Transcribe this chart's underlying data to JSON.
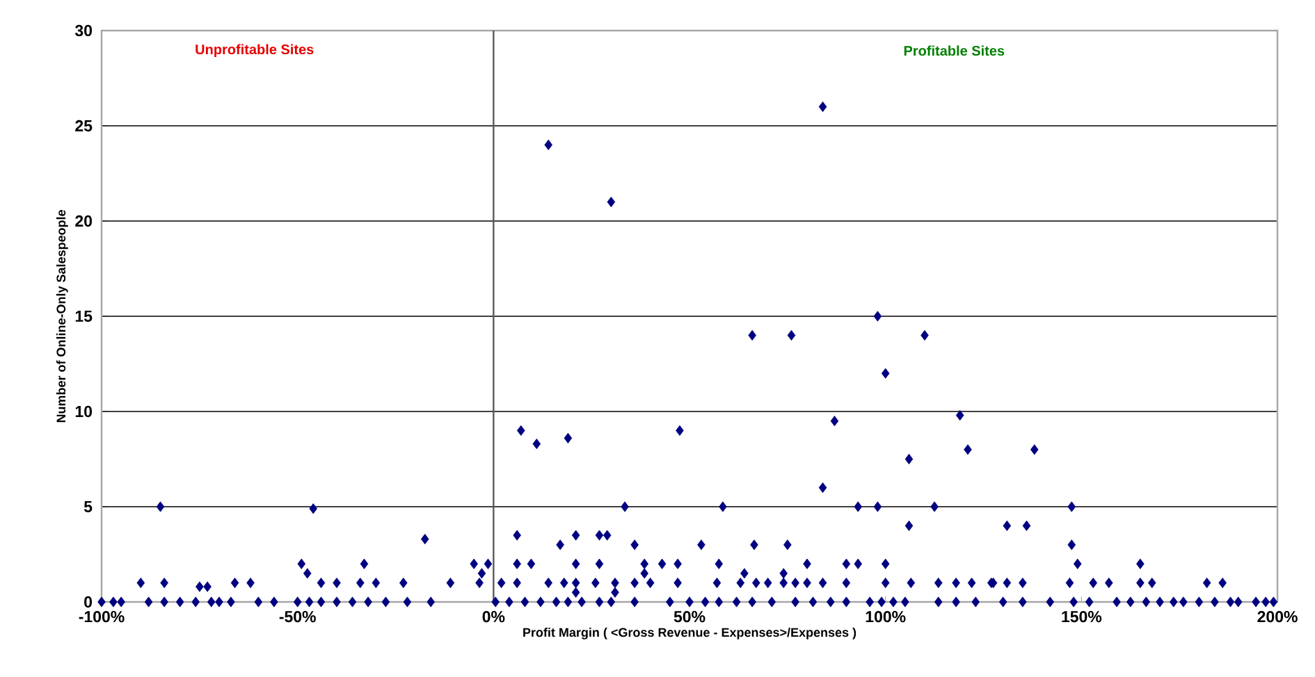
{
  "chart_data": {
    "type": "scatter",
    "xlabel": "Profit Margin ( <Gross Revenue - Expenses>/Expenses )",
    "ylabel": "Number of Online-Only Salespeople",
    "annotations": [
      "Unprofitable Sites",
      "Profitable Sites"
    ],
    "xlim": [
      -100,
      200
    ],
    "xticks": [
      {
        "value": -100,
        "label": "-100%"
      },
      {
        "value": -50,
        "label": "-50%"
      },
      {
        "value": 0,
        "label": "0%"
      },
      {
        "value": 50,
        "label": "50%"
      },
      {
        "value": 100,
        "label": "100%"
      },
      {
        "value": 150,
        "label": "150%"
      },
      {
        "value": 200,
        "label": "200%"
      }
    ],
    "ylim": [
      0,
      30
    ],
    "yticks": [
      0,
      5,
      10,
      15,
      20,
      25,
      30
    ],
    "grid": "y",
    "marker": "diamond",
    "ref_lines": [
      {
        "axis": "x",
        "value": 0
      }
    ],
    "series": [
      {
        "color": "#000080",
        "x": [
          84,
          14,
          30,
          66,
          76,
          98,
          100,
          110,
          7,
          11,
          19,
          47.5,
          87,
          106,
          119,
          121,
          138,
          -85,
          -46,
          33.5,
          58.5,
          93,
          98,
          112.5,
          147.5,
          84,
          106,
          131,
          136,
          -17.5,
          6,
          17,
          21,
          27,
          29,
          36,
          53,
          66.5,
          75,
          147.5,
          -5,
          -1.4,
          6,
          9.6,
          21,
          27,
          38.5,
          43,
          47,
          -49,
          -33,
          57.5,
          80,
          90,
          93,
          100,
          149,
          165,
          -3,
          38.5,
          -47.5,
          64,
          74,
          -90,
          -84,
          -75,
          -73,
          -66,
          -62,
          -44,
          -40,
          -34,
          -30,
          -23,
          -11,
          -3.6,
          2,
          6,
          14,
          18,
          21,
          26,
          31,
          36,
          40,
          47,
          57,
          63,
          67,
          70,
          74,
          77,
          80,
          84,
          90,
          100,
          106.5,
          113.5,
          118,
          122,
          127.5,
          127,
          131,
          135,
          147,
          153,
          157,
          165,
          168,
          182,
          186,
          21,
          31,
          -100,
          -97,
          -95,
          -88,
          -84,
          -80,
          -76,
          -72,
          -70,
          -67,
          -60,
          -56,
          -50,
          -47,
          -44,
          -40,
          -36,
          -32,
          -27.5,
          -22,
          -16,
          0.5,
          4,
          8,
          12,
          16,
          19,
          22.5,
          27,
          30,
          36,
          45,
          50,
          54,
          57.5,
          62,
          66,
          71,
          77,
          81.5,
          86,
          90,
          96,
          99,
          102,
          105,
          113.5,
          118,
          123,
          130,
          135,
          142,
          148,
          152,
          159,
          162.5,
          166.5,
          170,
          173.5,
          176,
          180,
          184,
          188,
          190,
          194.5,
          197,
          199
        ],
        "values": [
          26,
          24,
          21,
          14,
          14,
          15,
          12,
          14,
          9,
          8.3,
          8.6,
          9,
          9.5,
          7.5,
          9.8,
          8,
          8,
          5,
          4.9,
          5,
          5,
          5,
          5,
          5,
          5,
          6,
          4,
          4,
          4,
          3.3,
          3.5,
          3,
          3.5,
          3.5,
          3.5,
          3,
          3,
          3,
          3,
          3,
          2,
          2,
          2,
          2,
          2,
          2,
          2,
          2,
          2,
          2,
          2,
          2,
          2,
          2,
          2,
          2,
          2,
          2,
          1.5,
          1.5,
          1.5,
          1.5,
          1.5,
          1,
          1,
          0.8,
          0.8,
          1,
          1,
          1,
          1,
          1,
          1,
          1,
          1,
          1,
          1,
          1,
          1,
          1,
          1,
          1,
          1,
          1,
          1,
          1,
          1,
          1,
          1,
          1,
          1,
          1,
          1,
          1,
          1,
          1,
          1,
          1,
          1,
          1,
          1,
          1,
          1,
          1,
          1,
          1,
          1,
          1,
          1,
          1,
          1,
          0.5,
          0.5,
          0,
          0,
          0,
          0,
          0,
          0,
          0,
          0,
          0,
          0,
          0,
          0,
          0,
          0,
          0,
          0,
          0,
          0,
          0,
          0,
          0,
          0,
          0,
          0,
          0,
          0,
          0,
          0,
          0,
          0,
          0,
          0,
          0,
          0,
          0,
          0,
          0,
          0,
          0,
          0,
          0,
          0,
          0,
          0,
          0,
          0,
          0,
          0,
          0,
          0,
          0,
          0,
          0,
          0,
          0,
          0,
          0,
          0,
          0,
          0,
          0,
          0,
          0,
          0,
          0,
          0,
          0
        ]
      }
    ]
  }
}
